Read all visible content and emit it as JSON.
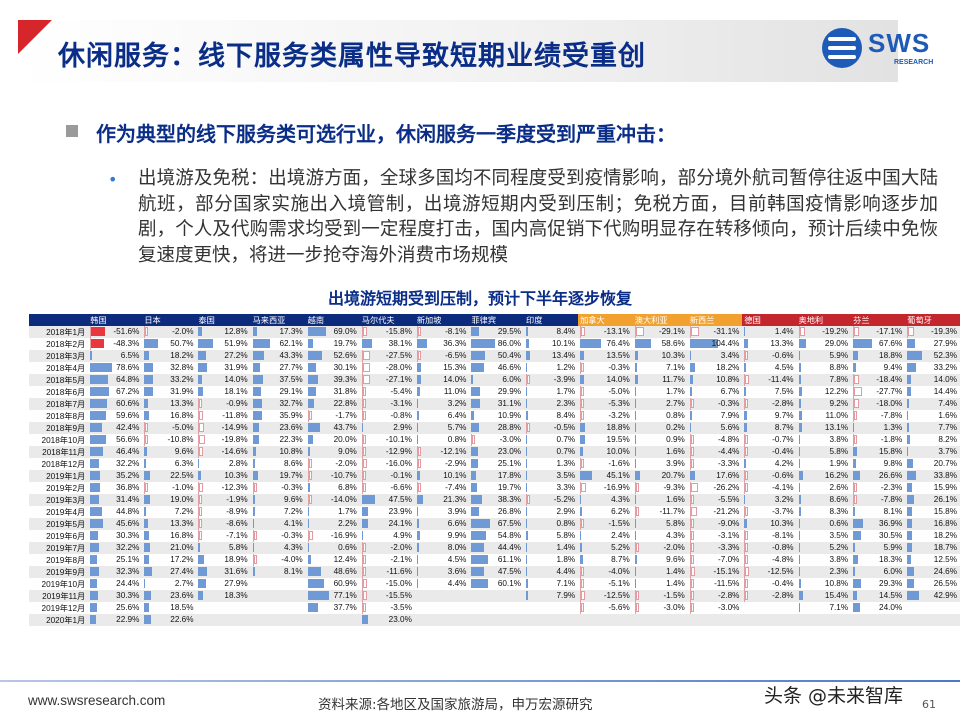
{
  "title": "休闲服务：线下服务类属性导致短期业绩受重创",
  "logo": {
    "text": "SWS",
    "sub": "RESEARCH"
  },
  "bullet1": "作为典型的线下服务类可选行业，休闲服务一季度受到严重冲击：",
  "bullet2": "出境游及免税：出境游方面，全球多国均不同程度受到疫情影响，部分境外航司暂停往返中国大陆航班，部分国家实施出入境管制，出境游短期内受到压制；免税方面，目前韩国疫情影响逐步加剧，个人及代购需求均受到一定程度打击，国内高促销下代购明显存在转移倾向，预计后续中免恢复速度更快，将进一步抢夺海外消费市场规模",
  "table_title": "出境游短期受到压制，预计下半年逐步恢复",
  "columns": [
    {
      "name": "韩国",
      "group": "main"
    },
    {
      "name": "日本",
      "group": "main"
    },
    {
      "name": "泰国",
      "group": "main"
    },
    {
      "name": "马来西亚",
      "group": "main"
    },
    {
      "name": "越南",
      "group": "main"
    },
    {
      "name": "马尔代夫",
      "group": "main"
    },
    {
      "name": "新加坡",
      "group": "main"
    },
    {
      "name": "菲律宾",
      "group": "main"
    },
    {
      "name": "印度",
      "group": "main"
    },
    {
      "name": "加拿大",
      "group": "orange"
    },
    {
      "name": "澳大利亚",
      "group": "orange"
    },
    {
      "name": "新西兰",
      "group": "orange"
    },
    {
      "name": "德国",
      "group": "red"
    },
    {
      "name": "奥地利",
      "group": "red"
    },
    {
      "name": "芬兰",
      "group": "red"
    },
    {
      "name": "葡萄牙",
      "group": "red"
    }
  ],
  "months": [
    "2018年1月",
    "2018年2月",
    "2018年3月",
    "2018年4月",
    "2018年5月",
    "2018年6月",
    "2018年7月",
    "2018年8月",
    "2018年9月",
    "2018年10月",
    "2018年11月",
    "2018年12月",
    "2019年1月",
    "2019年2月",
    "2019年3月",
    "2019年4月",
    "2019年5月",
    "2019年6月",
    "2019年7月",
    "2019年8月",
    "2019年9月",
    "2019年10月",
    "2019年11月",
    "2019年12月",
    "2020年1月"
  ],
  "table": [
    [
      "-51.6%",
      "-2.0%",
      "12.8%",
      "17.3%",
      "69.0%",
      "-15.8%",
      "-8.1%",
      "29.5%",
      "8.4%",
      "-13.1%",
      "-29.1%",
      "-31.1%",
      "1.4%",
      "-19.2%",
      "-17.1%",
      "-19.3%"
    ],
    [
      "-48.3%",
      "50.7%",
      "51.9%",
      "62.1%",
      "19.7%",
      "38.1%",
      "36.3%",
      "86.0%",
      "10.1%",
      "76.4%",
      "58.6%",
      "104.4%",
      "13.3%",
      "29.0%",
      "67.6%",
      "27.9%"
    ],
    [
      "6.5%",
      "18.2%",
      "27.2%",
      "43.3%",
      "52.6%",
      "-27.5%",
      "-6.5%",
      "50.4%",
      "13.4%",
      "13.5%",
      "10.3%",
      "3.4%",
      "-0.6%",
      "5.9%",
      "18.8%",
      "52.3%"
    ],
    [
      "78.6%",
      "32.8%",
      "31.9%",
      "27.7%",
      "30.1%",
      "-28.0%",
      "15.3%",
      "46.6%",
      "1.2%",
      "-0.3%",
      "7.1%",
      "18.2%",
      "4.5%",
      "8.8%",
      "9.4%",
      "33.2%"
    ],
    [
      "64.8%",
      "33.2%",
      "14.0%",
      "37.5%",
      "39.3%",
      "-27.1%",
      "14.0%",
      "6.0%",
      "-3.9%",
      "14.0%",
      "11.7%",
      "10.8%",
      "-11.4%",
      "7.8%",
      "-18.4%",
      "14.0%"
    ],
    [
      "67.2%",
      "31.9%",
      "18.1%",
      "29.1%",
      "31.8%",
      "-5.4%",
      "11.0%",
      "29.9%",
      "1.7%",
      "-5.0%",
      "1.7%",
      "6.7%",
      "7.5%",
      "12.2%",
      "-27.7%",
      "14.4%"
    ],
    [
      "60.6%",
      "13.3%",
      "-0.9%",
      "32.7%",
      "22.8%",
      "-3.1%",
      "3.2%",
      "31.1%",
      "2.3%",
      "-5.3%",
      "2.7%",
      "-0.3%",
      "-2.8%",
      "9.2%",
      "-18.0%",
      "7.4%"
    ],
    [
      "59.6%",
      "16.8%",
      "-11.8%",
      "35.9%",
      "-1.7%",
      "-0.8%",
      "6.4%",
      "10.9%",
      "8.4%",
      "-3.2%",
      "0.8%",
      "7.9%",
      "9.7%",
      "11.0%",
      "-7.8%",
      "1.6%"
    ],
    [
      "42.4%",
      "-5.0%",
      "-14.9%",
      "23.6%",
      "43.7%",
      "2.9%",
      "5.7%",
      "28.8%",
      "-0.5%",
      "18.8%",
      "0.2%",
      "5.6%",
      "8.7%",
      "13.1%",
      "1.3%",
      "7.7%"
    ],
    [
      "56.6%",
      "-10.8%",
      "-19.8%",
      "22.3%",
      "20.0%",
      "-10.1%",
      "0.8%",
      "-3.0%",
      "0.7%",
      "19.5%",
      "0.9%",
      "-4.8%",
      "-0.7%",
      "3.8%",
      "-1.8%",
      "8.2%"
    ],
    [
      "46.4%",
      "9.6%",
      "-14.6%",
      "10.8%",
      "9.0%",
      "-12.9%",
      "-12.1%",
      "23.0%",
      "0.7%",
      "10.0%",
      "1.6%",
      "-4.4%",
      "-0.4%",
      "5.8%",
      "15.8%",
      "3.7%"
    ],
    [
      "32.2%",
      "6.3%",
      "2.8%",
      "8.6%",
      "-2.0%",
      "-16.0%",
      "-2.9%",
      "25.1%",
      "1.3%",
      "-1.6%",
      "3.9%",
      "-3.3%",
      "4.2%",
      "1.9%",
      "9.8%",
      "20.7%"
    ],
    [
      "35.2%",
      "22.5%",
      "10.3%",
      "19.7%",
      "-10.7%",
      "-0.1%",
      "10.1%",
      "17.8%",
      "3.5%",
      "45.1%",
      "20.7%",
      "17.6%",
      "-0.6%",
      "16.2%",
      "26.6%",
      "33.8%"
    ],
    [
      "36.8%",
      "-1.0%",
      "-12.3%",
      "-0.3%",
      "6.8%",
      "-6.6%",
      "-7.4%",
      "19.7%",
      "3.3%",
      "-16.9%",
      "-9.3%",
      "-26.2%",
      "-4.1%",
      "2.6%",
      "-2.3%",
      "15.9%"
    ],
    [
      "31.4%",
      "19.0%",
      "-1.9%",
      "9.6%",
      "-14.0%",
      "47.5%",
      "21.3%",
      "38.3%",
      "-5.2%",
      "4.3%",
      "1.6%",
      "-5.5%",
      "3.2%",
      "8.6%",
      "-7.8%",
      "26.1%"
    ],
    [
      "44.8%",
      "7.2%",
      "-8.9%",
      "7.2%",
      "1.7%",
      "23.9%",
      "3.9%",
      "26.8%",
      "2.9%",
      "6.2%",
      "-11.7%",
      "-21.2%",
      "-3.7%",
      "8.3%",
      "8.1%",
      "15.8%"
    ],
    [
      "45.6%",
      "13.3%",
      "-8.6%",
      "4.1%",
      "2.2%",
      "24.1%",
      "6.6%",
      "67.5%",
      "0.8%",
      "-1.5%",
      "5.8%",
      "-9.0%",
      "10.3%",
      "0.6%",
      "36.9%",
      "16.8%"
    ],
    [
      "30.3%",
      "16.8%",
      "-7.1%",
      "-0.3%",
      "-16.9%",
      "4.9%",
      "9.9%",
      "54.8%",
      "5.8%",
      "2.4%",
      "4.3%",
      "-3.1%",
      "-8.1%",
      "3.5%",
      "30.5%",
      "18.2%"
    ],
    [
      "32.2%",
      "21.0%",
      "5.8%",
      "4.3%",
      "0.6%",
      "-2.0%",
      "8.0%",
      "44.4%",
      "1.4%",
      "5.2%",
      "-2.0%",
      "-3.3%",
      "-0.8%",
      "5.2%",
      "5.9%",
      "18.7%"
    ],
    [
      "25.1%",
      "17.2%",
      "18.9%",
      "-4.0%",
      "12.4%",
      "-2.1%",
      "4.5%",
      "61.1%",
      "1.8%",
      "8.7%",
      "9.6%",
      "-7.0%",
      "-4.8%",
      "3.8%",
      "18.3%",
      "12.5%"
    ],
    [
      "32.3%",
      "27.4%",
      "31.6%",
      "8.1%",
      "48.6%",
      "-11.6%",
      "3.6%",
      "47.5%",
      "4.4%",
      "-4.0%",
      "1.4%",
      "-15.1%",
      "-12.5%",
      "2.3%",
      "6.0%",
      "24.6%"
    ],
    [
      "24.4%",
      "2.7%",
      "27.9%",
      "",
      "60.9%",
      "-15.0%",
      "4.4%",
      "60.1%",
      "7.1%",
      "-5.1%",
      "1.4%",
      "-11.5%",
      "-0.4%",
      "10.8%",
      "29.3%",
      "26.5%"
    ],
    [
      "30.3%",
      "23.6%",
      "18.3%",
      "",
      "77.1%",
      "-15.5%",
      "",
      "",
      "7.9%",
      "-12.5%",
      "-1.5%",
      "-2.8%",
      "-2.8%",
      "15.4%",
      "14.5%",
      "42.9%"
    ],
    [
      "25.6%",
      "18.5%",
      "",
      "",
      "37.7%",
      "-3.5%",
      "",
      "",
      "",
      "-5.6%",
      "-3.0%",
      "-3.0%",
      "",
      "7.1%",
      "24.0%",
      ""
    ],
    [
      "22.9%",
      "22.6%",
      "",
      "",
      "",
      "23.0%",
      "",
      "",
      "",
      "",
      "",
      "",
      "",
      "",
      "",
      ""
    ]
  ],
  "footer": {
    "url": "www.swsresearch.com",
    "source": "资料来源:各地区及国家旅游局，申万宏源研究",
    "page": "61",
    "watermark": "头条 @未来智库"
  },
  "colors": {
    "navy": "#0a2d87",
    "accent_red": "#d6262c",
    "bar_blue": "#6f9ad6",
    "bar_neg": "#e49aa0",
    "orange_header": "#f2a02e"
  }
}
